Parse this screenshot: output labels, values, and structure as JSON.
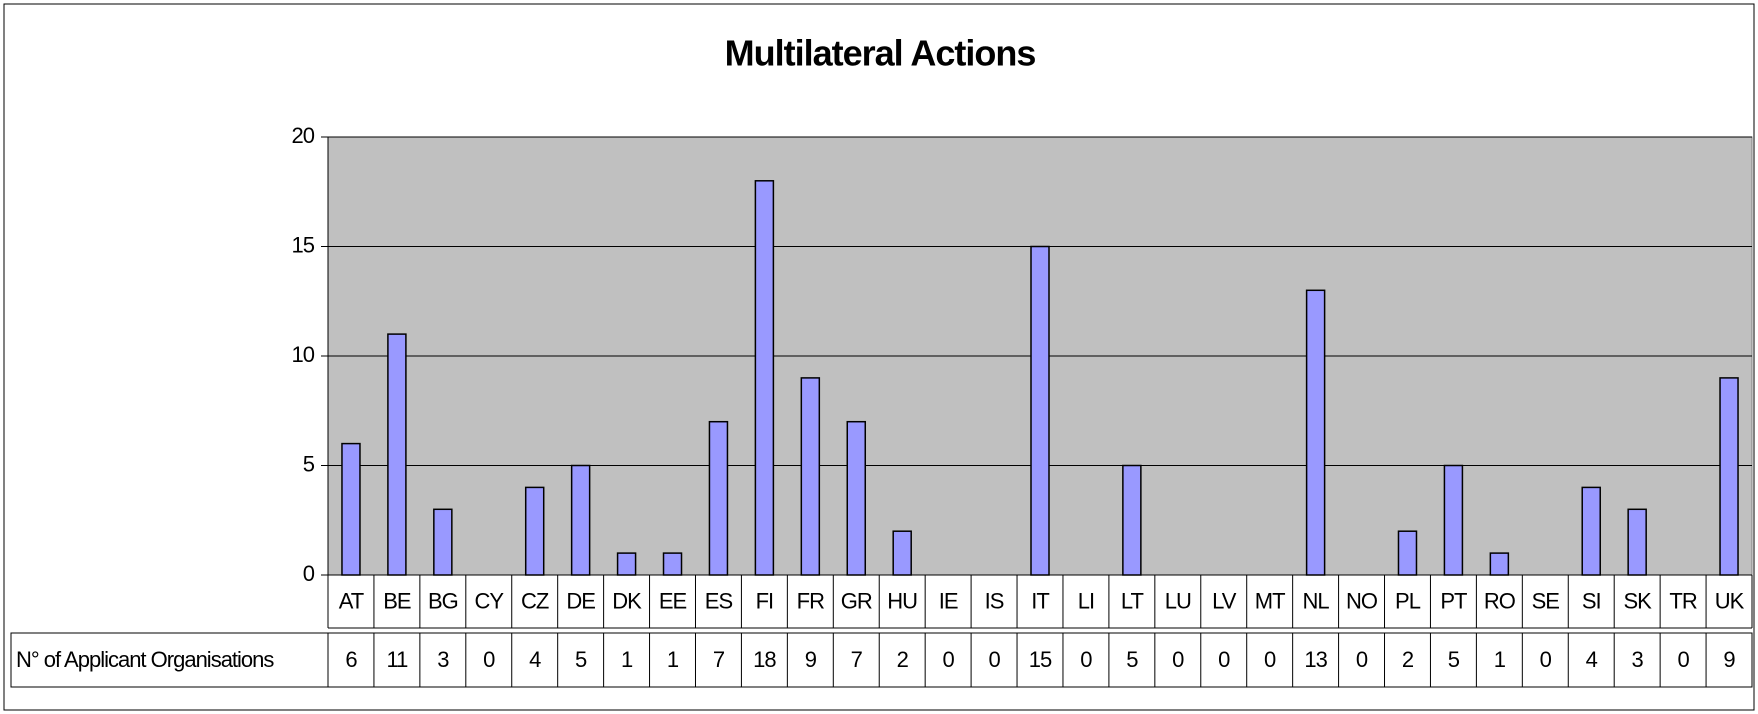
{
  "chart_data": {
    "type": "bar",
    "title": "Multilateral Actions",
    "categories": [
      "AT",
      "BE",
      "BG",
      "CY",
      "CZ",
      "DE",
      "DK",
      "EE",
      "ES",
      "FI",
      "FR",
      "GR",
      "HU",
      "IE",
      "IS",
      "IT",
      "LI",
      "LT",
      "LU",
      "LV",
      "MT",
      "NL",
      "NO",
      "PL",
      "PT",
      "RO",
      "SE",
      "SI",
      "SK",
      "TR",
      "UK"
    ],
    "series": [
      {
        "name": "N° of Applicant Organisations",
        "color": "#9999ff",
        "values": [
          6,
          11,
          3,
          0,
          4,
          5,
          1,
          1,
          7,
          18,
          9,
          7,
          2,
          0,
          0,
          15,
          0,
          5,
          0,
          0,
          0,
          13,
          0,
          2,
          5,
          1,
          0,
          4,
          3,
          0,
          9
        ]
      }
    ],
    "ylim": [
      0,
      20
    ],
    "yticks": [
      0,
      5,
      10,
      15,
      20
    ],
    "grid": true,
    "plot_background": "#c0c0c0"
  }
}
